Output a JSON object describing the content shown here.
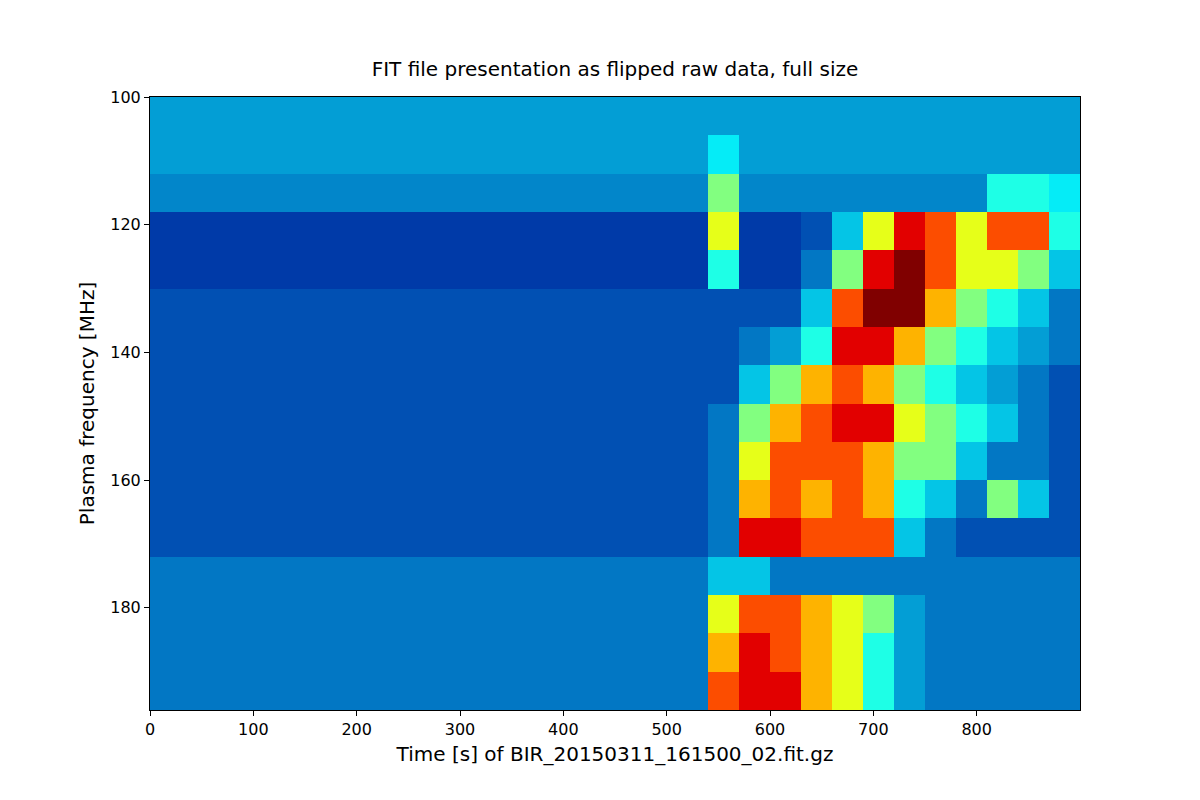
{
  "chart_data": {
    "type": "heatmap",
    "title": "FIT file presentation as flipped raw data, full size",
    "x_label": "Time [s] of BIR_20150311_161500_02.fit.gz",
    "y_label": "Plasma frequency [MHz]",
    "color": "Jet",
    "grid": false,
    "xlim": [
      0,
      900
    ],
    "ylim": [
      196,
      100
    ],
    "xticks": [
      0,
      100,
      200,
      300,
      400,
      500,
      600,
      700,
      800
    ],
    "yticks": [
      100,
      120,
      140,
      160,
      180
    ],
    "zlim": [
      0,
      10
    ],
    "x": [
      15,
      45,
      75,
      105,
      135,
      165,
      195,
      225,
      255,
      285,
      315,
      345,
      375,
      405,
      435,
      465,
      495,
      525,
      555,
      585,
      615,
      645,
      675,
      705,
      735,
      765,
      795,
      825,
      855,
      885
    ],
    "y": [
      103,
      109,
      115,
      121,
      127,
      133,
      139,
      145,
      151,
      157,
      163,
      169,
      175,
      181,
      187,
      193
    ],
    "z": [
      [
        2.5,
        2.5,
        2.5,
        2.5,
        2.5,
        2.5,
        2.5,
        2.5,
        2.5,
        2.5,
        2.5,
        2.5,
        2.5,
        2.5,
        2.5,
        2.5,
        2.5,
        2.5,
        2.5,
        2.5,
        2.5,
        2.5,
        2.5,
        2.5,
        2.5,
        2.5,
        2.5,
        2.5,
        2.5,
        2.5
      ],
      [
        2.5,
        2.5,
        2.5,
        2.5,
        2.5,
        2.5,
        2.5,
        2.5,
        2.5,
        2.5,
        2.5,
        2.5,
        2.5,
        2.5,
        2.5,
        2.5,
        2.5,
        2.5,
        3.5,
        2.5,
        2.5,
        2.5,
        2.5,
        2.5,
        2.5,
        2.5,
        2.5,
        2.5,
        2.5,
        2.5
      ],
      [
        2.2,
        2.2,
        2.2,
        2.2,
        2.2,
        2.2,
        2.2,
        2.2,
        2.2,
        2.2,
        2.2,
        2.2,
        2.2,
        2.2,
        2.2,
        2.2,
        2.2,
        2.2,
        5,
        2.2,
        2.2,
        2.2,
        2.2,
        2.2,
        2.2,
        2.2,
        2.2,
        4,
        4,
        3.5
      ],
      [
        1.2,
        1.2,
        1.2,
        1.2,
        1.2,
        1.2,
        1.2,
        1.2,
        1.2,
        1.2,
        1.2,
        1.2,
        1.2,
        1.2,
        1.2,
        1.2,
        1.2,
        1.2,
        6,
        1.2,
        1.2,
        1.5,
        3,
        6,
        9,
        8,
        6,
        8,
        8,
        4
      ],
      [
        1.2,
        1.2,
        1.2,
        1.2,
        1.2,
        1.2,
        1.2,
        1.2,
        1.2,
        1.2,
        1.2,
        1.2,
        1.2,
        1.2,
        1.2,
        1.2,
        1.2,
        1.2,
        4,
        1.2,
        1.2,
        2,
        5,
        9,
        10,
        8,
        6,
        6,
        5,
        3
      ],
      [
        1.5,
        1.5,
        1.5,
        1.5,
        1.5,
        1.5,
        1.5,
        1.5,
        1.5,
        1.5,
        1.5,
        1.5,
        1.5,
        1.5,
        1.5,
        1.5,
        1.5,
        1.5,
        1.5,
        1.5,
        1.5,
        3,
        8,
        10,
        10,
        7,
        5,
        4,
        3,
        2
      ],
      [
        1.5,
        1.5,
        1.5,
        1.5,
        1.5,
        1.5,
        1.5,
        1.5,
        1.5,
        1.5,
        1.5,
        1.5,
        1.5,
        1.5,
        1.5,
        1.5,
        1.5,
        1.5,
        1.5,
        2,
        2.5,
        4,
        9,
        9,
        7,
        5,
        4,
        3,
        2.5,
        2
      ],
      [
        1.5,
        1.5,
        1.5,
        1.5,
        1.5,
        1.5,
        1.5,
        1.5,
        1.5,
        1.5,
        1.5,
        1.5,
        1.5,
        1.5,
        1.5,
        1.5,
        1.5,
        1.5,
        1.5,
        3,
        5,
        7,
        8,
        7,
        5,
        4,
        3,
        2.5,
        2,
        1.5
      ],
      [
        1.5,
        1.5,
        1.5,
        1.5,
        1.5,
        1.5,
        1.5,
        1.5,
        1.5,
        1.5,
        1.5,
        1.5,
        1.5,
        1.5,
        1.5,
        1.5,
        1.5,
        1.5,
        2,
        5,
        7,
        8,
        9,
        9,
        6,
        5,
        4,
        3,
        2,
        1.5
      ],
      [
        1.5,
        1.5,
        1.5,
        1.5,
        1.5,
        1.5,
        1.5,
        1.5,
        1.5,
        1.5,
        1.5,
        1.5,
        1.5,
        1.5,
        1.5,
        1.5,
        1.5,
        1.5,
        2,
        6,
        8,
        8,
        8,
        7,
        5,
        5,
        3,
        2,
        2,
        1.5
      ],
      [
        1.5,
        1.5,
        1.5,
        1.5,
        1.5,
        1.5,
        1.5,
        1.5,
        1.5,
        1.5,
        1.5,
        1.5,
        1.5,
        1.5,
        1.5,
        1.5,
        1.5,
        1.5,
        2,
        7,
        8,
        7,
        8,
        7,
        4,
        3,
        2,
        5,
        3,
        1.5
      ],
      [
        1.5,
        1.5,
        1.5,
        1.5,
        1.5,
        1.5,
        1.5,
        1.5,
        1.5,
        1.5,
        1.5,
        1.5,
        1.5,
        1.5,
        1.5,
        1.5,
        1.5,
        1.5,
        2,
        9,
        9,
        8,
        8,
        8,
        3,
        2,
        1.5,
        1.5,
        1.5,
        1.5
      ],
      [
        2,
        2,
        2,
        2,
        2,
        2,
        2,
        2,
        2,
        2,
        2,
        2,
        2,
        2,
        2,
        2,
        2,
        2,
        3,
        3,
        2,
        2,
        2,
        2,
        2,
        2,
        2,
        2,
        2,
        2
      ],
      [
        2,
        2,
        2,
        2,
        2,
        2,
        2,
        2,
        2,
        2,
        2,
        2,
        2,
        2,
        2,
        2,
        2,
        2,
        6,
        8,
        8,
        7,
        6,
        5,
        2.5,
        2,
        2,
        2,
        2,
        2
      ],
      [
        2,
        2,
        2,
        2,
        2,
        2,
        2,
        2,
        2,
        2,
        2,
        2,
        2,
        2,
        2,
        2,
        2,
        2,
        7,
        9,
        8,
        7,
        6,
        4,
        2.5,
        2,
        2,
        2,
        2,
        2
      ],
      [
        2,
        2,
        2,
        2,
        2,
        2,
        2,
        2,
        2,
        2,
        2,
        2,
        2,
        2,
        2,
        2,
        2,
        2,
        8,
        9,
        9,
        7,
        6,
        4,
        2.5,
        2,
        2,
        2,
        2,
        2
      ]
    ]
  }
}
